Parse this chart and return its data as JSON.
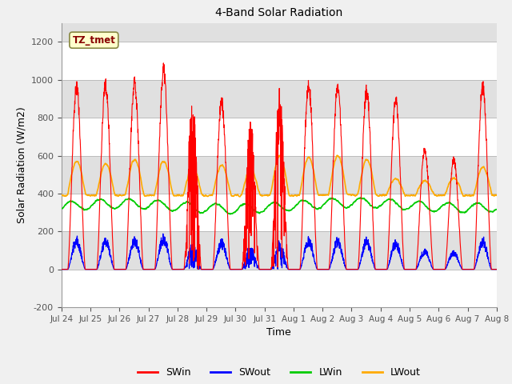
{
  "title": "4-Band Solar Radiation",
  "xlabel": "Time",
  "ylabel": "Solar Radiation (W/m2)",
  "ylim": [
    -200,
    1300
  ],
  "yticks": [
    -200,
    0,
    200,
    400,
    600,
    800,
    1000,
    1200
  ],
  "x_tick_labels": [
    "Jul 24",
    "Jul 25",
    "Jul 26",
    "Jul 27",
    "Jul 28",
    "Jul 29",
    "Jul 30",
    "Jul 31",
    "Aug 1",
    "Aug 2",
    "Aug 3",
    "Aug 4",
    "Aug 5",
    "Aug 6",
    "Aug 7",
    "Aug 8"
  ],
  "annotation_text": "TZ_tmet",
  "annotation_bg": "#ffffcc",
  "annotation_border": "#888844",
  "colors": {
    "SWin": "#ff0000",
    "SWout": "#0000ff",
    "LWin": "#00cc00",
    "LWout": "#ffaa00"
  },
  "legend_labels": [
    "SWin",
    "SWout",
    "LWin",
    "LWout"
  ],
  "bg_color": "#f0f0f0",
  "plot_bg": "#ffffff",
  "n_days": 15,
  "points_per_day": 144,
  "day_peaks_SW": [
    1000,
    1010,
    1020,
    1090,
    940,
    920,
    800,
    970,
    1010,
    1005,
    980,
    930,
    650,
    600,
    1000
  ],
  "cloudy_days": [
    4,
    6,
    7
  ],
  "LWout_peaks": [
    570,
    560,
    580,
    570,
    540,
    550,
    530,
    600,
    590,
    600,
    580,
    480,
    470,
    480,
    540
  ],
  "LWin_base": 330,
  "band_colors": [
    "#ffffff",
    "#e0e0e0",
    "#ffffff",
    "#e0e0e0",
    "#ffffff",
    "#e0e0e0",
    "#ffffff",
    "#e0e0e0"
  ],
  "band_ranges": [
    [
      -200,
      0
    ],
    [
      0,
      200
    ],
    [
      200,
      400
    ],
    [
      400,
      600
    ],
    [
      600,
      800
    ],
    [
      800,
      1000
    ],
    [
      1000,
      1200
    ],
    [
      1200,
      1300
    ]
  ]
}
